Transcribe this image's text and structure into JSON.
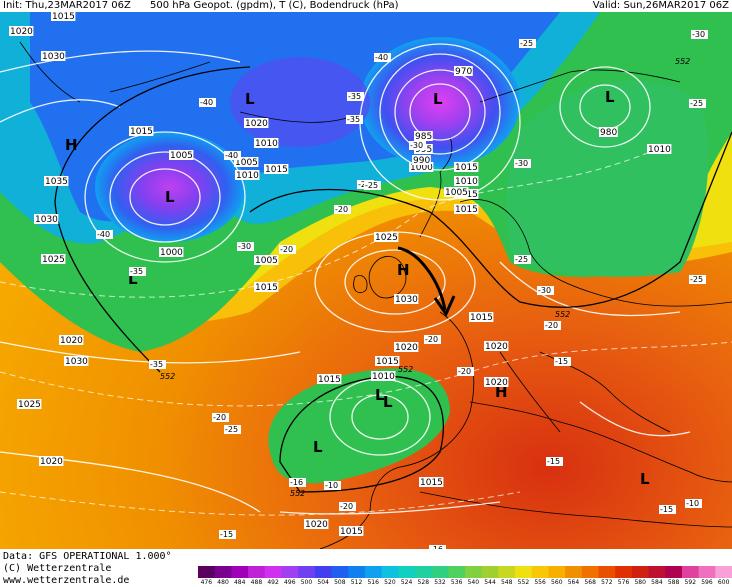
{
  "header": {
    "init": "Init: Thu,23MAR2017 06Z",
    "title": "500 hPa Geopot. (gpdm), T (C), Bodendruck (hPa)",
    "valid": "Valid: Sun,26MAR2017 06Z"
  },
  "footer": {
    "data_line": "Data: GFS OPERATIONAL 1.000°",
    "copyright": "(C) Wetterzentrale",
    "url": "www.wetterzentrale.de"
  },
  "scale": {
    "values": [
      "476",
      "480",
      "484",
      "488",
      "492",
      "496",
      "500",
      "504",
      "508",
      "512",
      "516",
      "520",
      "524",
      "528",
      "532",
      "536",
      "540",
      "544",
      "548",
      "552",
      "556",
      "560",
      "564",
      "568",
      "572",
      "576",
      "580",
      "584",
      "588",
      "592",
      "596",
      "600"
    ],
    "colors": [
      "#5a0060",
      "#7a0090",
      "#a000b8",
      "#c020d8",
      "#d030f0",
      "#a040f0",
      "#7040f0",
      "#4040f0",
      "#2060f0",
      "#1080f0",
      "#10a0f0",
      "#10c0e0",
      "#10d0c0",
      "#20d0a0",
      "#30d080",
      "#50d060",
      "#80d040",
      "#a0d030",
      "#c8d820",
      "#f0e010",
      "#f8c808",
      "#f8b000",
      "#f09000",
      "#f07000",
      "#e85000",
      "#e03000",
      "#d02010",
      "#c01030",
      "#b00050",
      "#e040a0",
      "#f070c0",
      "#f8a0d8"
    ]
  },
  "map": {
    "pressure_labels": [
      "1015",
      "1020",
      "1030",
      "1015",
      "1005",
      "1035",
      "1030",
      "1025",
      "1000",
      "1005",
      "1015",
      "1020",
      "1030",
      "1020",
      "1010",
      "1005",
      "1010",
      "1015",
      "1025",
      "1030",
      "1020",
      "1015",
      "1010",
      "1020",
      "1015",
      "1020",
      "1025",
      "1020",
      "1015",
      "1015",
      "1010",
      "1015",
      "1005",
      "1000",
      "995",
      "990",
      "985",
      "970",
      "980",
      "1010",
      "1015",
      "1020",
      "1015",
      "1015"
    ],
    "temp_labels": [
      "-40",
      "-40",
      "-35",
      "-40",
      "-35",
      "-35",
      "-30",
      "-25",
      "-30",
      "-20",
      "-40",
      "-35",
      "-30",
      "-30",
      "-25",
      "-30",
      "-20",
      "-25",
      "-25",
      "-20",
      "-25",
      "-20",
      "-20",
      "-15",
      "-20",
      "-15",
      "-20",
      "-16",
      "-25",
      "-15",
      "-15",
      "-10",
      "-10",
      "-16",
      "-25"
    ],
    "geopot_labels": [
      "552",
      "552",
      "552",
      "552",
      "552"
    ],
    "systems": [
      "H",
      "L",
      "L",
      "L",
      "L",
      "L",
      "L",
      "H",
      "L",
      "L",
      "L",
      "H"
    ]
  }
}
